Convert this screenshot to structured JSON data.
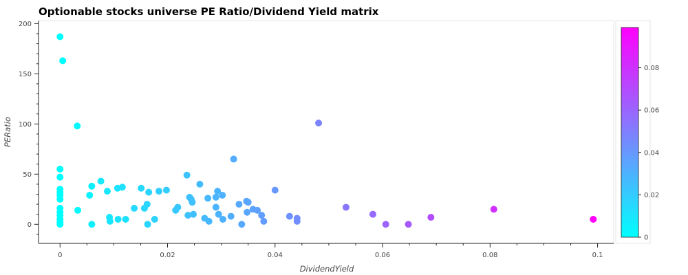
{
  "chart_data": {
    "type": "scatter",
    "title": "Optionable stocks universe PE Ratio/Dividend Yield matrix",
    "xlabel": "DividendYield",
    "ylabel": "PERatio",
    "xlim": [
      -0.004,
      0.103
    ],
    "ylim": [
      -19,
      203
    ],
    "x_ticks": [
      0,
      0.02,
      0.04,
      0.06,
      0.08,
      0.1
    ],
    "x_tick_labels": [
      "0",
      "0.02",
      "0.04",
      "0.06",
      "0.08",
      "0.1"
    ],
    "y_ticks": [
      0,
      50,
      100,
      150,
      200
    ],
    "y_tick_labels": [
      "0",
      "50",
      "100",
      "150",
      "200"
    ],
    "grid": false,
    "legend": "none",
    "colorbar": {
      "placement": "right",
      "range": [
        0,
        0.099
      ],
      "ticks": [
        0,
        0.02,
        0.04,
        0.06,
        0.08
      ],
      "tick_labels": [
        "0",
        "0.02",
        "0.04",
        "0.06",
        "0.08"
      ],
      "color_low": "#00ffff",
      "color_high": "#ff00ff"
    },
    "points": [
      {
        "x": 0.0,
        "y": 187
      },
      {
        "x": 0.0005,
        "y": 163
      },
      {
        "x": 0.0032,
        "y": 98
      },
      {
        "x": 0.0,
        "y": 55
      },
      {
        "x": 0.0,
        "y": 47
      },
      {
        "x": 0.0,
        "y": 35
      },
      {
        "x": 0.0,
        "y": 32
      },
      {
        "x": 0.0,
        "y": 29
      },
      {
        "x": 0.0,
        "y": 25
      },
      {
        "x": 0.0,
        "y": 16
      },
      {
        "x": 0.0,
        "y": 12
      },
      {
        "x": 0.0,
        "y": 9
      },
      {
        "x": 0.0,
        "y": 5
      },
      {
        "x": 0.0,
        "y": 2
      },
      {
        "x": 0.0,
        "y": 0
      },
      {
        "x": 0.0033,
        "y": 14
      },
      {
        "x": 0.0055,
        "y": 29
      },
      {
        "x": 0.0059,
        "y": 38
      },
      {
        "x": 0.0059,
        "y": 0
      },
      {
        "x": 0.0076,
        "y": 43
      },
      {
        "x": 0.0088,
        "y": 33
      },
      {
        "x": 0.0092,
        "y": 7
      },
      {
        "x": 0.0093,
        "y": 3
      },
      {
        "x": 0.0107,
        "y": 36
      },
      {
        "x": 0.0108,
        "y": 5
      },
      {
        "x": 0.0116,
        "y": 37
      },
      {
        "x": 0.0122,
        "y": 5
      },
      {
        "x": 0.0138,
        "y": 16
      },
      {
        "x": 0.0151,
        "y": 36
      },
      {
        "x": 0.0157,
        "y": 16
      },
      {
        "x": 0.0162,
        "y": 20
      },
      {
        "x": 0.0165,
        "y": 32
      },
      {
        "x": 0.0163,
        "y": 0
      },
      {
        "x": 0.0176,
        "y": 5
      },
      {
        "x": 0.0184,
        "y": 33
      },
      {
        "x": 0.0198,
        "y": 34
      },
      {
        "x": 0.0215,
        "y": 14
      },
      {
        "x": 0.0219,
        "y": 17
      },
      {
        "x": 0.0236,
        "y": 49
      },
      {
        "x": 0.0238,
        "y": 9
      },
      {
        "x": 0.0241,
        "y": 27
      },
      {
        "x": 0.0244,
        "y": 25
      },
      {
        "x": 0.0246,
        "y": 22
      },
      {
        "x": 0.0248,
        "y": 10
      },
      {
        "x": 0.026,
        "y": 40
      },
      {
        "x": 0.0269,
        "y": 6
      },
      {
        "x": 0.0275,
        "y": 26
      },
      {
        "x": 0.0277,
        "y": 3
      },
      {
        "x": 0.029,
        "y": 27
      },
      {
        "x": 0.029,
        "y": 17
      },
      {
        "x": 0.0293,
        "y": 33
      },
      {
        "x": 0.0295,
        "y": 10
      },
      {
        "x": 0.0302,
        "y": 29
      },
      {
        "x": 0.0303,
        "y": 5
      },
      {
        "x": 0.0318,
        "y": 8
      },
      {
        "x": 0.0323,
        "y": 65
      },
      {
        "x": 0.0333,
        "y": 20
      },
      {
        "x": 0.0338,
        "y": 0
      },
      {
        "x": 0.0347,
        "y": 23
      },
      {
        "x": 0.035,
        "y": 22
      },
      {
        "x": 0.0348,
        "y": 12
      },
      {
        "x": 0.0359,
        "y": 15
      },
      {
        "x": 0.0367,
        "y": 14
      },
      {
        "x": 0.0375,
        "y": 9
      },
      {
        "x": 0.0379,
        "y": 3
      },
      {
        "x": 0.04,
        "y": 34
      },
      {
        "x": 0.0427,
        "y": 8
      },
      {
        "x": 0.0441,
        "y": 6
      },
      {
        "x": 0.0441,
        "y": 3
      },
      {
        "x": 0.0481,
        "y": 101
      },
      {
        "x": 0.0532,
        "y": 17
      },
      {
        "x": 0.0582,
        "y": 10
      },
      {
        "x": 0.0606,
        "y": 0
      },
      {
        "x": 0.0648,
        "y": 0
      },
      {
        "x": 0.069,
        "y": 7
      },
      {
        "x": 0.0807,
        "y": 15
      },
      {
        "x": 0.0992,
        "y": 5
      }
    ]
  }
}
